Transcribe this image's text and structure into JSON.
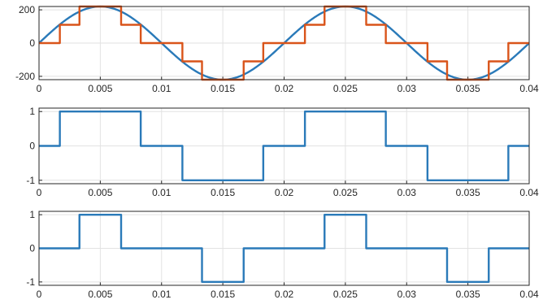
{
  "chart_data": [
    {
      "type": "line",
      "title": "",
      "xlabel": "",
      "ylabel": "",
      "xlim": [
        0,
        0.04
      ],
      "ylim": [
        -220,
        220
      ],
      "grid": true,
      "xticks": [
        "0",
        "0.005",
        "0.01",
        "0.015",
        "0.02",
        "0.025",
        "0.03",
        "0.035",
        "0.04"
      ],
      "yticks": [
        "200",
        "0",
        "-200"
      ],
      "series": [
        {
          "kind": "sine",
          "amplitude": 220,
          "frequency_hz": 50,
          "color": "#2a7ab9"
        },
        {
          "kind": "stepped",
          "color": "#d9541a",
          "x": [
            0,
            0.0017,
            0.0017,
            0.0033,
            0.0033,
            0.0067,
            0.0067,
            0.0083,
            0.0083,
            0.0117,
            0.0117,
            0.0133,
            0.0133,
            0.0167,
            0.0167,
            0.0183,
            0.0183,
            0.0217,
            0.0217,
            0.0233,
            0.0233,
            0.0267,
            0.0267,
            0.0283,
            0.0283,
            0.0317,
            0.0317,
            0.0333,
            0.0333,
            0.0367,
            0.0367,
            0.0383,
            0.0383,
            0.04
          ],
          "y": [
            0,
            0,
            110,
            110,
            220,
            220,
            110,
            110,
            0,
            0,
            -110,
            -110,
            -220,
            -220,
            -110,
            -110,
            0,
            0,
            110,
            110,
            220,
            220,
            110,
            110,
            0,
            0,
            -110,
            -110,
            -220,
            -220,
            -110,
            -110,
            0,
            0
          ]
        }
      ]
    },
    {
      "type": "line",
      "title": "",
      "xlabel": "",
      "ylabel": "",
      "xlim": [
        0,
        0.04
      ],
      "ylim": [
        -1.1,
        1.1
      ],
      "grid": true,
      "xticks": [
        "0",
        "0.005",
        "0.01",
        "0.015",
        "0.02",
        "0.025",
        "0.03",
        "0.035",
        "0.04"
      ],
      "yticks": [
        "1",
        "0",
        "-1"
      ],
      "series": [
        {
          "kind": "stepped",
          "color": "#2a7ab9",
          "x": [
            0,
            0.0017,
            0.0017,
            0.0083,
            0.0083,
            0.0117,
            0.0117,
            0.0183,
            0.0183,
            0.0217,
            0.0217,
            0.0283,
            0.0283,
            0.0317,
            0.0317,
            0.0383,
            0.0383,
            0.04
          ],
          "y": [
            0,
            0,
            1,
            1,
            0,
            0,
            -1,
            -1,
            0,
            0,
            1,
            1,
            0,
            0,
            -1,
            -1,
            0,
            0
          ]
        }
      ]
    },
    {
      "type": "line",
      "title": "",
      "xlabel": "",
      "ylabel": "",
      "xlim": [
        0,
        0.04
      ],
      "ylim": [
        -1.1,
        1.1
      ],
      "grid": true,
      "xticks": [
        "0",
        "0.005",
        "0.01",
        "0.015",
        "0.02",
        "0.025",
        "0.03",
        "0.035",
        "0.04"
      ],
      "yticks": [
        "1",
        "0",
        "-1"
      ],
      "series": [
        {
          "kind": "stepped",
          "color": "#2a7ab9",
          "x": [
            0,
            0.0033,
            0.0033,
            0.0067,
            0.0067,
            0.0133,
            0.0133,
            0.0167,
            0.0167,
            0.0233,
            0.0233,
            0.0267,
            0.0267,
            0.0333,
            0.0333,
            0.0367,
            0.0367,
            0.04
          ],
          "y": [
            0,
            0,
            1,
            1,
            0,
            0,
            -1,
            -1,
            0,
            0,
            1,
            1,
            0,
            0,
            -1,
            -1,
            0,
            0
          ]
        }
      ]
    }
  ]
}
